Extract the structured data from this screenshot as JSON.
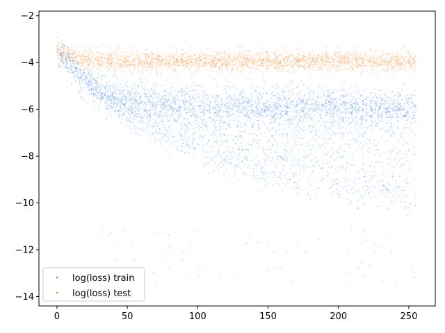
{
  "chart_data": {
    "type": "scatter",
    "title": "",
    "xlabel": "",
    "ylabel": "",
    "xlim": [
      -12.8,
      268.8
    ],
    "ylim": [
      -14.4,
      -1.8
    ],
    "xticks": [
      0,
      50,
      100,
      150,
      200,
      250
    ],
    "yticks": [
      -2,
      -4,
      -6,
      -8,
      -10,
      -12,
      -14
    ],
    "grid": false,
    "legend_position": "lower-left",
    "series": [
      {
        "name": "log(loss) train",
        "color": "#1f77ff",
        "description_points": {
          "x_range": [
            0,
            255
          ],
          "start_y": -3.3,
          "dense_band_center_end": -5.8,
          "lower_envelope_end": -10.5,
          "upper_envelope_end": -5.2
        }
      },
      {
        "name": "log(loss) test",
        "color": "#ff7f0e",
        "description_points": {
          "x_range": [
            0,
            255
          ],
          "start_y": -3.3,
          "band_center_end": -3.9,
          "band_halfwidth": 0.45
        }
      }
    ],
    "legend": [
      "log(loss) train",
      "log(loss) test"
    ]
  }
}
